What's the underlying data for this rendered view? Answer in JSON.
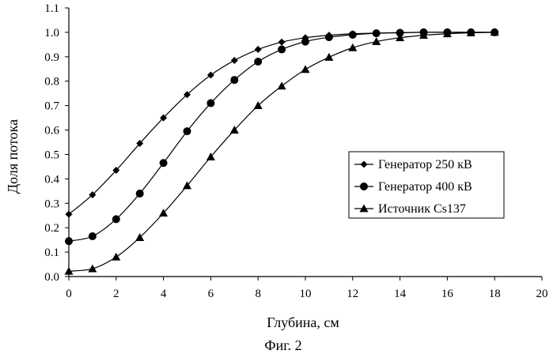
{
  "caption": "Фиг. 2",
  "chart_data": {
    "type": "line",
    "title": "",
    "xlabel": "Глубина, см",
    "ylabel": "Доля потока",
    "xlim": [
      0,
      20
    ],
    "ylim": [
      0.0,
      1.1
    ],
    "x_ticks": [
      0,
      2,
      4,
      6,
      8,
      10,
      12,
      14,
      16,
      18,
      20
    ],
    "y_ticks": [
      0.0,
      0.1,
      0.2,
      0.3,
      0.4,
      0.5,
      0.6,
      0.7,
      0.8,
      0.9,
      1.0,
      1.1
    ],
    "y_tick_labels": [
      "0.0",
      "0.1",
      "0.2",
      "0.3",
      "0.4",
      "0.5",
      "0.6",
      "0.7",
      "0.8",
      "0.9",
      "1.0",
      "1.1"
    ],
    "grid": false,
    "legend_position": "right",
    "x": [
      0,
      1,
      2,
      3,
      4,
      5,
      6,
      7,
      8,
      9,
      10,
      11,
      12,
      13,
      14,
      15,
      16,
      17,
      18
    ],
    "series": [
      {
        "name": "Генератор 250 кВ",
        "marker": "diamond",
        "values": [
          0.255,
          0.335,
          0.435,
          0.545,
          0.65,
          0.745,
          0.825,
          0.885,
          0.93,
          0.96,
          0.978,
          0.988,
          0.994,
          0.997,
          0.999,
          1.0,
          1.0,
          1.0,
          1.0
        ]
      },
      {
        "name": "Генератор 400 кВ",
        "marker": "circle",
        "values": [
          0.145,
          0.165,
          0.235,
          0.34,
          0.465,
          0.595,
          0.71,
          0.805,
          0.88,
          0.93,
          0.962,
          0.98,
          0.99,
          0.996,
          0.998,
          1.0,
          1.0,
          1.0,
          1.0
        ]
      },
      {
        "name": "Источник Cs137",
        "marker": "triangle",
        "values": [
          0.022,
          0.032,
          0.08,
          0.16,
          0.26,
          0.372,
          0.49,
          0.6,
          0.7,
          0.78,
          0.848,
          0.898,
          0.937,
          0.962,
          0.978,
          0.988,
          0.994,
          0.998,
          1.0
        ]
      }
    ]
  }
}
